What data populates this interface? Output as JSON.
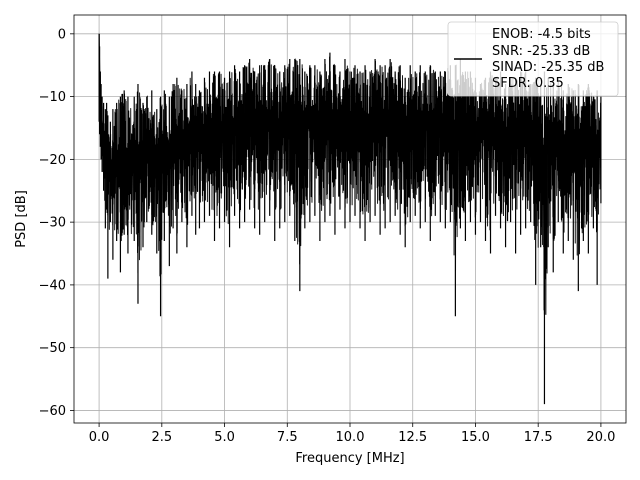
{
  "chart_data": {
    "type": "line",
    "title": "",
    "xlabel": "Frequency [MHz]",
    "ylabel": "PSD [dB]",
    "xlim": [
      -1.0,
      21.0
    ],
    "ylim": [
      -62.0,
      3.0
    ],
    "xticks": [
      0.0,
      2.5,
      5.0,
      7.5,
      10.0,
      12.5,
      15.0,
      17.5,
      20.0
    ],
    "xtick_labels": [
      "0.0",
      "2.5",
      "5.0",
      "7.5",
      "10.0",
      "12.5",
      "15.0",
      "17.5",
      "20.0"
    ],
    "yticks": [
      0,
      -10,
      -20,
      -30,
      -40,
      -50,
      -60
    ],
    "ytick_labels": [
      "0",
      "−10",
      "−20",
      "−30",
      "−40",
      "−50",
      "−60"
    ],
    "grid": true,
    "legend_position": "top-right",
    "series": [
      {
        "name": "",
        "color": "#000000",
        "x": [
          0.0,
          0.02,
          0.05,
          0.08,
          0.12,
          0.18,
          0.25,
          0.3,
          0.35,
          0.45,
          0.55,
          0.7,
          0.85,
          1.0,
          1.15,
          1.4,
          1.55,
          1.75,
          1.9,
          2.1,
          2.3,
          2.45,
          2.6,
          2.8,
          2.95,
          3.1,
          3.3,
          3.5,
          3.7,
          3.85,
          4.0,
          4.2,
          4.4,
          4.6,
          4.8,
          5.0,
          5.2,
          5.4,
          5.6,
          5.8,
          6.0,
          6.2,
          6.4,
          6.6,
          6.8,
          7.0,
          7.2,
          7.4,
          7.6,
          7.8,
          8.0,
          8.2,
          8.4,
          8.6,
          8.8,
          9.0,
          9.2,
          9.4,
          9.6,
          9.8,
          10.0,
          10.2,
          10.4,
          10.6,
          10.8,
          11.0,
          11.2,
          11.4,
          11.6,
          11.8,
          12.0,
          12.2,
          12.4,
          12.6,
          12.8,
          13.0,
          13.2,
          13.4,
          13.6,
          13.8,
          14.0,
          14.2,
          14.4,
          14.6,
          14.8,
          15.0,
          15.2,
          15.4,
          15.6,
          15.8,
          16.0,
          16.2,
          16.4,
          16.6,
          16.8,
          17.0,
          17.2,
          17.4,
          17.6,
          17.75,
          17.9,
          18.1,
          18.3,
          18.5,
          18.7,
          18.9,
          19.1,
          19.3,
          19.5,
          19.7,
          19.85,
          20.0
        ],
        "upper": [
          0.0,
          -2.0,
          -6.0,
          -8.0,
          -10.0,
          -11.0,
          -12.0,
          -11.0,
          -13.0,
          -14.0,
          -12.0,
          -11.0,
          -10.0,
          -9.0,
          -10.0,
          -10.0,
          -8.0,
          -11.0,
          -10.0,
          -9.0,
          -12.0,
          -10.0,
          -9.0,
          -10.0,
          -8.0,
          -7.0,
          -9.0,
          -8.0,
          -6.0,
          -8.0,
          -9.0,
          -7.0,
          -6.0,
          -6.0,
          -6.0,
          -7.0,
          -6.0,
          -5.0,
          -6.0,
          -5.0,
          -4.0,
          -6.0,
          -5.0,
          -5.0,
          -4.0,
          -5.0,
          -6.0,
          -5.0,
          -4.0,
          -4.0,
          -4.0,
          -6.0,
          -5.0,
          -5.0,
          -6.0,
          -4.0,
          -3.0,
          -5.0,
          -6.0,
          -4.0,
          -6.0,
          -5.0,
          -6.0,
          -5.0,
          -6.0,
          -4.0,
          -5.0,
          -5.0,
          -4.0,
          -6.0,
          -5.0,
          -7.0,
          -5.0,
          -6.0,
          -5.0,
          -6.0,
          -5.0,
          -6.0,
          -6.0,
          -6.0,
          -5.0,
          -5.0,
          -4.0,
          -6.0,
          -6.0,
          -7.0,
          -8.0,
          -7.0,
          -6.0,
          -7.0,
          -6.0,
          -8.0,
          -7.0,
          -7.0,
          -6.0,
          -6.0,
          -8.0,
          -7.0,
          -8.0,
          -6.0,
          -7.0,
          -8.0,
          -7.0,
          -9.0,
          -8.0,
          -9.0,
          -8.0,
          -9.0,
          -8.0,
          -10.0,
          -9.0,
          -10.0
        ],
        "lower": [
          -14.0,
          -16.0,
          -18.0,
          -20.0,
          -22.0,
          -25.0,
          -31.0,
          -28.0,
          -39.0,
          -30.0,
          -36.0,
          -33.0,
          -38.0,
          -32.0,
          -35.0,
          -33.0,
          -43.0,
          -34.0,
          -30.0,
          -32.0,
          -35.0,
          -45.0,
          -33.0,
          -37.0,
          -31.0,
          -35.0,
          -30.0,
          -34.0,
          -29.0,
          -32.0,
          -31.0,
          -30.0,
          -29.0,
          -33.0,
          -31.0,
          -30.0,
          -34.0,
          -29.0,
          -31.0,
          -30.0,
          -28.0,
          -31.0,
          -32.0,
          -30.0,
          -29.0,
          -33.0,
          -31.0,
          -30.0,
          -29.0,
          -33.0,
          -41.0,
          -31.0,
          -30.0,
          -29.0,
          -33.0,
          -30.0,
          -29.0,
          -32.0,
          -28.0,
          -31.0,
          -30.0,
          -29.0,
          -31.0,
          -33.0,
          -30.0,
          -29.0,
          -32.0,
          -31.0,
          -30.0,
          -29.0,
          -32.0,
          -34.0,
          -30.0,
          -29.0,
          -31.0,
          -30.0,
          -33.0,
          -29.0,
          -30.0,
          -31.0,
          -30.0,
          -45.0,
          -31.0,
          -33.0,
          -30.0,
          -32.0,
          -30.0,
          -33.0,
          -35.0,
          -29.0,
          -31.0,
          -34.0,
          -30.0,
          -35.0,
          -32.0,
          -31.0,
          -30.0,
          -40.0,
          -34.0,
          -59.0,
          -34.0,
          -38.0,
          -30.0,
          -35.0,
          -33.0,
          -36.0,
          -41.0,
          -33.0,
          -35.0,
          -31.0,
          -40.0,
          -27.0
        ],
        "mid": [
          0.0,
          -6.0,
          -10.0,
          -13.0,
          -16.0,
          -18.0,
          -20.0,
          -19.0,
          -22.0,
          -21.0,
          -23.0,
          -20.0,
          -22.0,
          -19.0,
          -21.0,
          -20.0,
          -22.0,
          -21.0,
          -20.0,
          -19.0,
          -21.0,
          -22.0,
          -18.0,
          -20.0,
          -17.0,
          -19.0,
          -18.0,
          -17.0,
          -16.0,
          -18.0,
          -17.0,
          -16.0,
          -15.0,
          -17.0,
          -16.0,
          -15.0,
          -17.0,
          -15.0,
          -16.0,
          -14.0,
          -15.0,
          -16.0,
          -14.0,
          -15.0,
          -14.0,
          -16.0,
          -15.0,
          -14.0,
          -13.0,
          -15.0,
          -16.0,
          -15.0,
          -14.0,
          -13.0,
          -16.0,
          -14.0,
          -13.0,
          -15.0,
          -14.0,
          -13.0,
          -15.0,
          -14.0,
          -15.0,
          -14.0,
          -16.0,
          -13.0,
          -15.0,
          -14.0,
          -13.0,
          -15.0,
          -14.0,
          -16.0,
          -14.0,
          -15.0,
          -14.0,
          -15.0,
          -14.0,
          -15.0,
          -14.0,
          -16.0,
          -14.0,
          -17.0,
          -13.0,
          -15.0,
          -14.0,
          -16.0,
          -15.0,
          -16.0,
          -17.0,
          -15.0,
          -16.0,
          -17.0,
          -15.0,
          -17.0,
          -16.0,
          -15.0,
          -17.0,
          -18.0,
          -17.0,
          -25.0,
          -16.0,
          -18.0,
          -16.0,
          -18.0,
          -17.0,
          -18.0,
          -19.0,
          -17.0,
          -18.0,
          -17.0,
          -19.0,
          -16.0
        ]
      }
    ],
    "legend": {
      "lines": [
        "ENOB: -4.5 bits",
        "SNR: -25.33 dB",
        "SINAD: -25.35 dB",
        "SFDR: 0.35"
      ]
    }
  }
}
